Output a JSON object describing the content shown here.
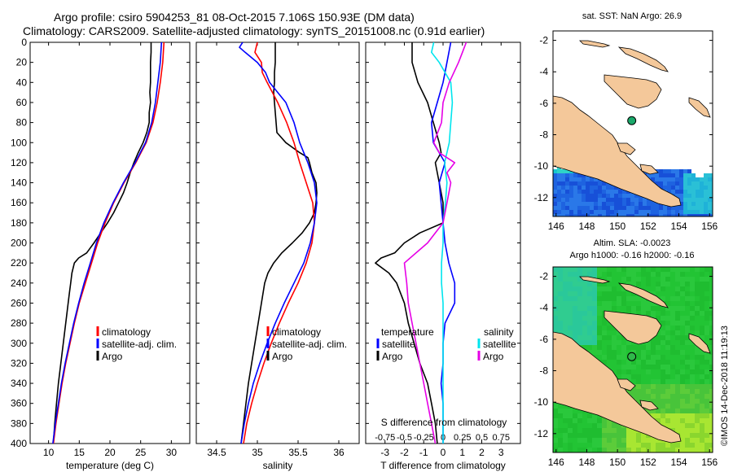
{
  "header": {
    "line1": "Argo profile: csiro 5904253_81 08-Oct-2015 7.106S 150.93E (DM data)",
    "line2": "Climatology: CARS2009. Satellite-adjusted climatology: synTS_20151008.nc (0.91d earlier)"
  },
  "colors": {
    "climatology": "#ff0000",
    "satellite": "#0000ff",
    "argo": "#000000",
    "temp_sat_diff": "#0000ff",
    "sal_sat_diff": "#00e5ee",
    "argo_sal_diff": "#e600e6",
    "land": "#f4c89a",
    "ocean_sst": "#1f5ad8",
    "ocean_sla": "#25c825"
  },
  "chart_data": [
    {
      "id": "temperature",
      "type": "line",
      "xlabel": "temperature (deg C)",
      "xlim": [
        7,
        33
      ],
      "ylim": [
        0,
        400
      ],
      "xticks": [
        10,
        15,
        20,
        25,
        30
      ],
      "yticks": [
        0,
        20,
        40,
        60,
        80,
        100,
        120,
        140,
        160,
        180,
        200,
        220,
        240,
        260,
        280,
        300,
        320,
        340,
        360,
        380,
        400
      ],
      "y_reversed": true,
      "legend": [
        {
          "key": "climatology",
          "label": "climatology"
        },
        {
          "key": "satellite",
          "label": "satellite-adj. clim."
        },
        {
          "key": "argo",
          "label": "Argo"
        }
      ],
      "series": [
        {
          "key": "argo",
          "name": "Argo",
          "depth": [
            0,
            10,
            20,
            30,
            40,
            50,
            60,
            70,
            80,
            90,
            100,
            110,
            120,
            130,
            140,
            150,
            160,
            170,
            180,
            190,
            200,
            210,
            215,
            220,
            230,
            240,
            250,
            260,
            280,
            300,
            320,
            340,
            360,
            380,
            400
          ],
          "values": [
            26.7,
            26.7,
            26.6,
            26.6,
            26.6,
            26.5,
            26.6,
            26.4,
            26.4,
            26.0,
            25.4,
            24.6,
            23.9,
            23.3,
            22.8,
            22.2,
            21.4,
            20.6,
            19.6,
            18.5,
            17.4,
            16.2,
            14.9,
            14.2,
            13.8,
            13.6,
            13.4,
            13.2,
            12.8,
            12.4,
            12.0,
            11.6,
            11.3,
            11.0,
            10.8
          ]
        },
        {
          "key": "climatology",
          "name": "climatology",
          "depth": [
            0,
            20,
            40,
            60,
            80,
            100,
            120,
            140,
            160,
            180,
            200,
            220,
            240,
            260,
            280,
            300,
            320,
            340,
            360,
            380,
            400
          ],
          "values": [
            28.8,
            28.6,
            28.2,
            27.7,
            27.0,
            25.9,
            24.2,
            22.3,
            20.6,
            19.2,
            18.0,
            17.0,
            16.0,
            15.0,
            14.2,
            13.5,
            12.8,
            12.2,
            11.7,
            11.2,
            10.8
          ]
        },
        {
          "key": "satellite",
          "name": "satellite-adj. clim.",
          "depth": [
            0,
            20,
            40,
            60,
            80,
            100,
            120,
            140,
            160,
            180,
            200,
            220,
            240,
            260,
            280,
            300,
            320,
            340,
            360,
            380,
            400
          ],
          "values": [
            28.4,
            28.2,
            27.8,
            27.4,
            26.8,
            25.8,
            24.1,
            22.2,
            20.5,
            19.0,
            17.8,
            16.8,
            15.8,
            14.9,
            14.1,
            13.4,
            12.7,
            12.1,
            11.6,
            11.1,
            10.7
          ]
        }
      ]
    },
    {
      "id": "salinity",
      "type": "line",
      "xlabel": "salinity",
      "xlim": [
        34.25,
        36.25
      ],
      "ylim": [
        0,
        400
      ],
      "xticks": [
        34.5,
        35,
        35.5,
        36
      ],
      "yticks": [
        0,
        20,
        40,
        60,
        80,
        100,
        120,
        140,
        160,
        180,
        200,
        220,
        240,
        260,
        280,
        300,
        320,
        340,
        360,
        380,
        400
      ],
      "y_reversed": true,
      "legend": [
        {
          "key": "climatology",
          "label": "climatology"
        },
        {
          "key": "satellite",
          "label": "satellite-adj. clim."
        },
        {
          "key": "argo",
          "label": "Argo"
        }
      ],
      "series": [
        {
          "key": "argo",
          "name": "Argo",
          "depth": [
            0,
            10,
            20,
            30,
            40,
            50,
            60,
            70,
            80,
            90,
            100,
            110,
            115,
            120,
            130,
            140,
            150,
            160,
            170,
            180,
            190,
            200,
            210,
            220,
            230,
            240,
            260,
            280,
            300,
            320,
            340,
            360,
            380,
            400
          ],
          "values": [
            35.22,
            35.22,
            35.22,
            35.21,
            35.21,
            35.2,
            35.21,
            35.22,
            35.23,
            35.24,
            35.35,
            35.52,
            35.62,
            35.64,
            35.67,
            35.72,
            35.73,
            35.72,
            35.7,
            35.64,
            35.55,
            35.43,
            35.3,
            35.2,
            35.13,
            35.09,
            35.05,
            35.01,
            34.97,
            34.93,
            34.89,
            34.86,
            34.83,
            34.8
          ]
        },
        {
          "key": "climatology",
          "name": "climatology",
          "depth": [
            0,
            10,
            20,
            30,
            40,
            60,
            80,
            100,
            120,
            140,
            160,
            180,
            200,
            220,
            240,
            260,
            280,
            300,
            320,
            340,
            360,
            380,
            400
          ],
          "values": [
            35.0,
            34.97,
            35.05,
            35.06,
            35.12,
            35.25,
            35.36,
            35.45,
            35.52,
            35.6,
            35.68,
            35.7,
            35.67,
            35.6,
            35.5,
            35.38,
            35.27,
            35.17,
            35.08,
            35.0,
            34.93,
            34.87,
            34.83
          ]
        },
        {
          "key": "satellite",
          "name": "satellite-adj. clim.",
          "depth": [
            0,
            5,
            10,
            20,
            30,
            40,
            60,
            80,
            100,
            120,
            140,
            160,
            180,
            200,
            220,
            240,
            260,
            280,
            300,
            320,
            340,
            360,
            380,
            400
          ],
          "values": [
            34.82,
            34.78,
            34.85,
            35.0,
            35.1,
            35.15,
            35.35,
            35.45,
            35.52,
            35.62,
            35.7,
            35.73,
            35.7,
            35.65,
            35.57,
            35.45,
            35.33,
            35.22,
            35.12,
            35.03,
            34.95,
            34.89,
            34.84,
            34.8
          ]
        }
      ]
    },
    {
      "id": "differences",
      "type": "line",
      "xlabel": "T difference from climatology",
      "xlabel_top": "S difference from climatology",
      "xlim": [
        -4,
        4
      ],
      "ylim": [
        0,
        400
      ],
      "xticks": [
        -3,
        -2,
        -1,
        0,
        1,
        2,
        3
      ],
      "xticks_s": [
        "-0.75",
        "-0.5",
        "-0.25",
        "0",
        "0.25",
        "0.5",
        "0.75"
      ],
      "yticks": [
        0,
        20,
        40,
        60,
        80,
        100,
        120,
        140,
        160,
        180,
        200,
        220,
        240,
        260,
        280,
        300,
        320,
        340,
        360,
        380,
        400
      ],
      "y_reversed": true,
      "legend_t_title": "temperature",
      "legend_s_title": "salinity",
      "legend_t": [
        {
          "key": "temp_sat_diff",
          "label": "satellite"
        },
        {
          "key": "argo",
          "label": "Argo"
        }
      ],
      "legend_s": [
        {
          "key": "sal_sat_diff",
          "label": "satellite"
        },
        {
          "key": "argo_sal_diff",
          "label": "Argo"
        }
      ],
      "series": [
        {
          "key": "argo",
          "name": "Argo T diff",
          "depth": [
            0,
            20,
            40,
            60,
            80,
            100,
            110,
            120,
            140,
            160,
            180,
            190,
            200,
            210,
            215,
            220,
            230,
            240,
            260,
            280,
            300,
            320,
            340,
            360,
            380,
            400
          ],
          "values": [
            -1.6,
            -1.6,
            -1.3,
            -0.8,
            -0.5,
            -0.2,
            -0.1,
            -0.4,
            -0.2,
            0.0,
            0.0,
            -1.2,
            -2.0,
            -2.5,
            -3.2,
            -3.5,
            -2.8,
            -2.4,
            -2.0,
            -1.8,
            -1.5,
            -1.2,
            -0.8,
            -0.6,
            -0.4,
            -0.3
          ]
        },
        {
          "key": "temp_sat_diff",
          "name": "satellite T diff",
          "depth": [
            0,
            20,
            40,
            60,
            80,
            100,
            120,
            140,
            160,
            180,
            200,
            220,
            240,
            260,
            280,
            300,
            320,
            340,
            360,
            380,
            400
          ],
          "values": [
            0.4,
            0.2,
            0.0,
            -0.3,
            -0.6,
            -0.5,
            0.1,
            -0.2,
            -0.1,
            0.0,
            0.1,
            0.3,
            0.6,
            0.6,
            0.1,
            0.0,
            0.0,
            -0.1,
            0.0,
            0.0,
            0.0
          ]
        },
        {
          "key": "sal_sat_diff",
          "name": "satellite S diff",
          "depth": [
            0,
            10,
            20,
            40,
            60,
            80,
            100,
            120,
            140,
            160,
            180,
            200,
            220,
            240,
            260,
            280,
            300,
            320,
            340,
            360,
            380,
            400
          ],
          "values": [
            -0.12,
            -0.15,
            -0.05,
            0.1,
            0.12,
            0.1,
            0.08,
            0.02,
            0.05,
            0.03,
            0.0,
            0.0,
            -0.02,
            -0.02,
            0.0,
            0.0,
            0.0,
            0.0,
            0.0,
            0.0,
            0.0,
            0.0
          ]
        },
        {
          "key": "argo_sal_diff",
          "name": "Argo S diff",
          "depth": [
            0,
            10,
            20,
            40,
            60,
            80,
            100,
            110,
            120,
            130,
            140,
            160,
            180,
            200,
            220,
            240,
            260,
            280,
            300,
            320,
            340,
            360,
            380,
            400
          ],
          "values": [
            0.3,
            0.25,
            0.2,
            0.08,
            0.0,
            -0.02,
            -0.12,
            -0.05,
            0.15,
            0.05,
            0.1,
            0.05,
            0.0,
            -0.2,
            -0.5,
            -0.47,
            -0.45,
            -0.4,
            -0.35,
            -0.3,
            -0.25,
            -0.2,
            -0.15,
            -0.1
          ]
        }
      ]
    },
    {
      "id": "sst_map",
      "type": "heatmap",
      "title": "sat. SST: NaN Argo: 26.9",
      "xlim": [
        145.8,
        156.2
      ],
      "ylim": [
        -13.2,
        -1.4
      ],
      "xticks": [
        146,
        148,
        150,
        152,
        154,
        156
      ],
      "yticks": [
        -2,
        -4,
        -6,
        -8,
        -10,
        -12
      ],
      "argo_position": {
        "lon": 150.93,
        "lat": -7.106
      }
    },
    {
      "id": "sla_map",
      "type": "heatmap",
      "title": "Altim. SLA: -0.0023",
      "subtitle": "Argo h1000: -0.16 h2000: -0.16",
      "xlim": [
        145.8,
        156.2
      ],
      "ylim": [
        -13.2,
        -1.4
      ],
      "xticks": [
        146,
        148,
        150,
        152,
        154,
        156
      ],
      "yticks": [
        -2,
        -4,
        -6,
        -8,
        -10,
        -12
      ],
      "argo_position": {
        "lon": 150.93,
        "lat": -7.106
      }
    }
  ],
  "footer": {
    "credit": "©IMOS 14-Dec-2018 11:19:13"
  }
}
